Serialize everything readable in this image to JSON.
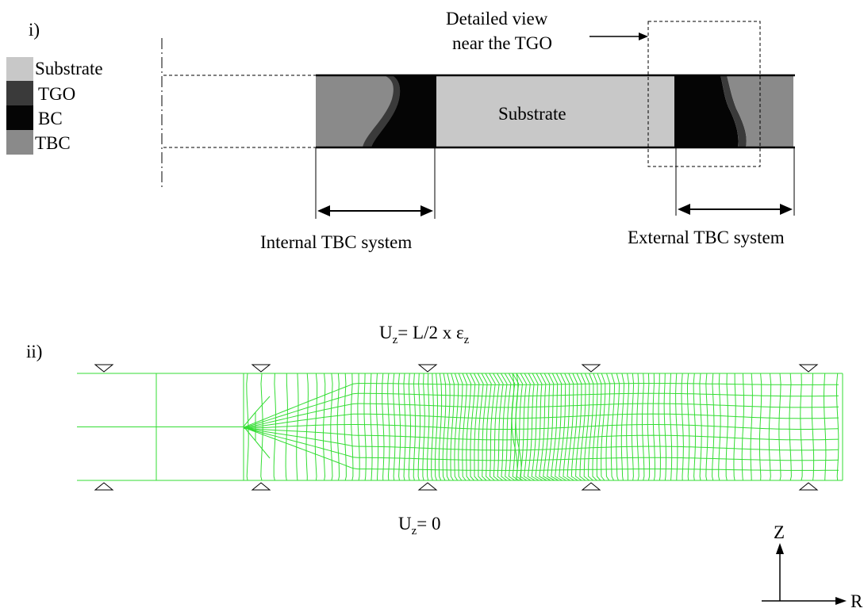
{
  "panel_i": {
    "label": "i)",
    "legend": [
      {
        "name": "Substrate",
        "color": "#c8c8c8"
      },
      {
        "name": "TGO",
        "color": "#3a3a3a"
      },
      {
        "name": "BC",
        "color": "#050505"
      },
      {
        "name": "TBC",
        "color": "#8a8a8a"
      }
    ],
    "substrate_label": "Substrate",
    "detail_label_line1": "Detailed view",
    "detail_label_line2": "near the TGO",
    "internal_label": "Internal TBC system",
    "external_label": "External TBC system"
  },
  "panel_ii": {
    "label": "ii)",
    "top_bc_main": "U",
    "top_bc_sub": "z",
    "top_bc_rest": "= L/2 x ε",
    "top_bc_sub2": "z",
    "bottom_bc_main": "U",
    "bottom_bc_sub": "z",
    "bottom_bc_rest": "= 0",
    "mesh_color": "#33dd33"
  },
  "axes": {
    "vertical": "Z",
    "horizontal": "R"
  }
}
